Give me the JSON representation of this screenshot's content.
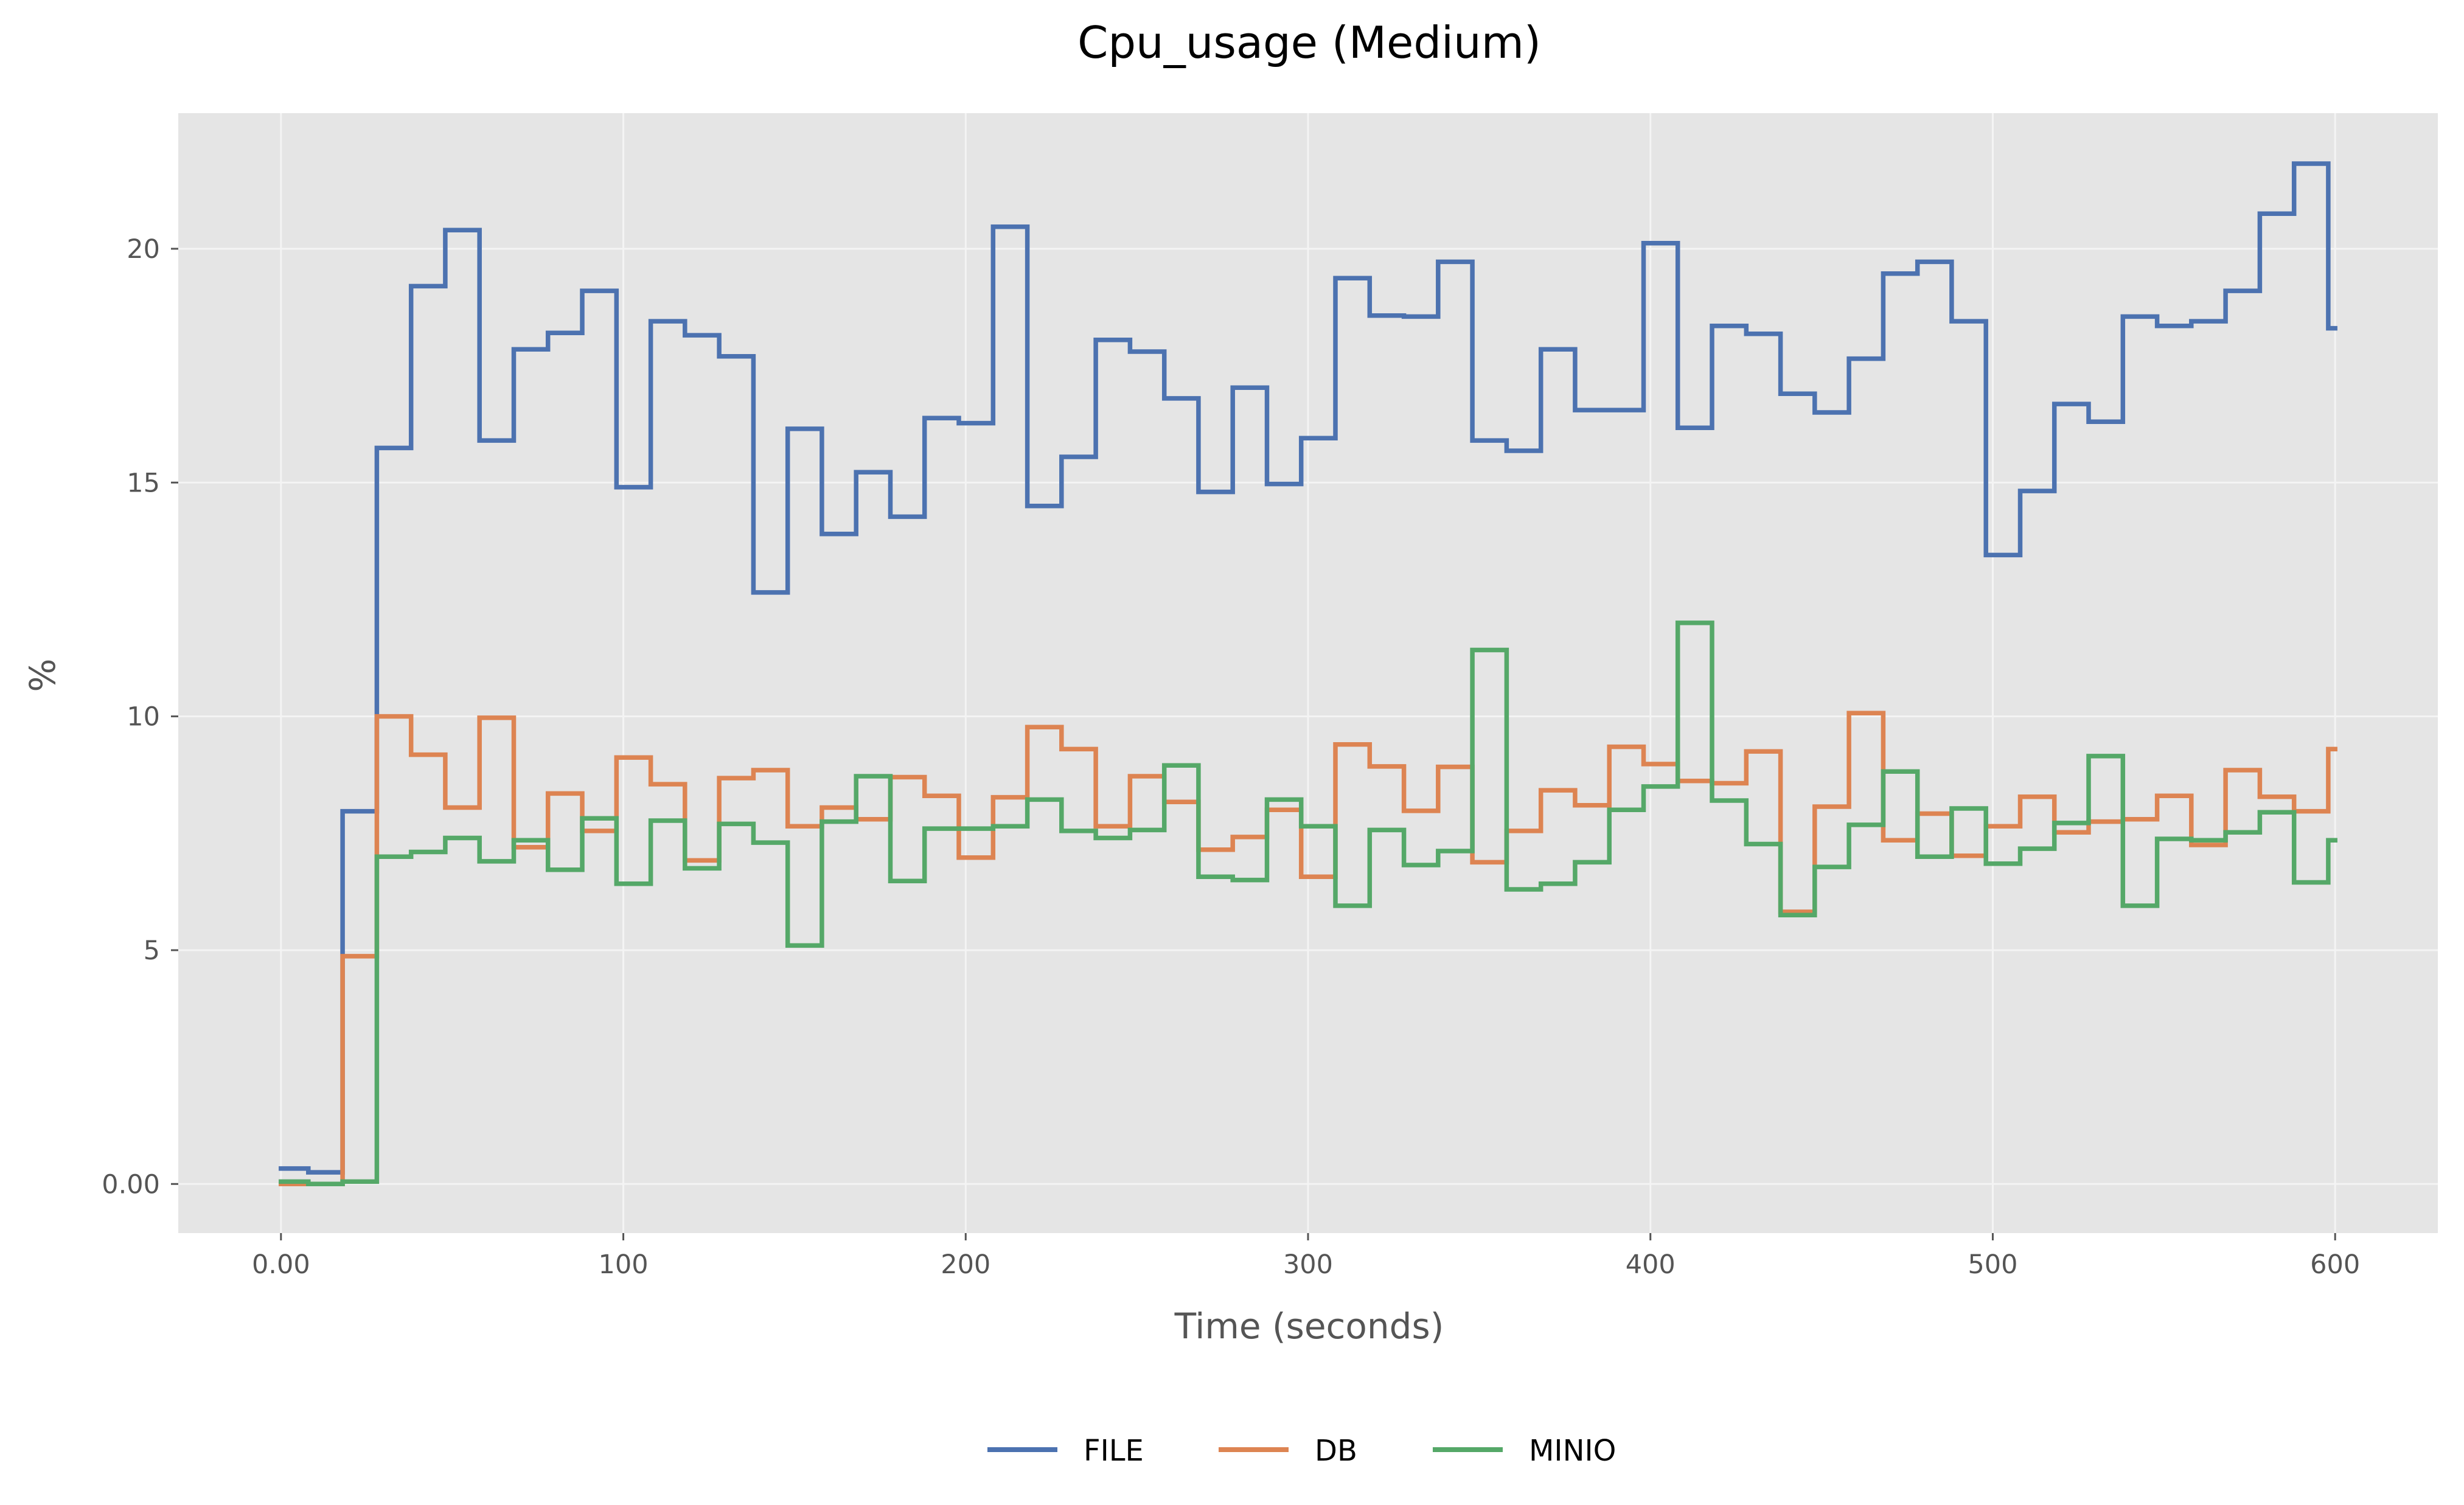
{
  "chart_data": {
    "type": "line",
    "title": "Cpu_usage (Medium)",
    "xlabel": "Time (seconds)",
    "ylabel": "%",
    "xlim": [
      -30,
      630
    ],
    "ylim": [
      -1.05,
      22.9
    ],
    "x_ticks": [
      0,
      100,
      200,
      300,
      400,
      500,
      600
    ],
    "x_tick_labels": [
      "0.00",
      "100",
      "200",
      "300",
      "400",
      "500",
      "600"
    ],
    "y_ticks": [
      0,
      5,
      10,
      15,
      20
    ],
    "y_tick_labels": [
      "0.00",
      "5",
      "10",
      "15",
      "20"
    ],
    "grid": true,
    "legend_position": "bottom-center",
    "step": "post",
    "series": [
      {
        "name": "FILE",
        "color": "#4C72B0",
        "points": [
          [
            0,
            0.33
          ],
          [
            8,
            0.25
          ],
          [
            18,
            7.97
          ],
          [
            28,
            15.74
          ],
          [
            38,
            19.2
          ],
          [
            48,
            20.4
          ],
          [
            58,
            15.9
          ],
          [
            68,
            17.85
          ],
          [
            78,
            18.2
          ],
          [
            88,
            19.1
          ],
          [
            98,
            14.9
          ],
          [
            108,
            18.45
          ],
          [
            118,
            18.15
          ],
          [
            128,
            17.7
          ],
          [
            138,
            12.65
          ],
          [
            148,
            16.15
          ],
          [
            158,
            13.9
          ],
          [
            168,
            15.22
          ],
          [
            178,
            14.27
          ],
          [
            188,
            16.38
          ],
          [
            198,
            16.27
          ],
          [
            208,
            20.47
          ],
          [
            218,
            14.5
          ],
          [
            228,
            15.55
          ],
          [
            238,
            18.05
          ],
          [
            248,
            17.8
          ],
          [
            258,
            16.8
          ],
          [
            268,
            14.8
          ],
          [
            278,
            17.03
          ],
          [
            288,
            14.97
          ],
          [
            298,
            15.95
          ],
          [
            308,
            19.37
          ],
          [
            318,
            18.57
          ],
          [
            328,
            18.55
          ],
          [
            338,
            19.72
          ],
          [
            348,
            15.9
          ],
          [
            358,
            15.68
          ],
          [
            368,
            17.85
          ],
          [
            378,
            16.55
          ],
          [
            388,
            16.55
          ],
          [
            398,
            20.12
          ],
          [
            408,
            16.17
          ],
          [
            418,
            18.35
          ],
          [
            428,
            18.18
          ],
          [
            438,
            16.9
          ],
          [
            448,
            16.5
          ],
          [
            458,
            17.65
          ],
          [
            468,
            19.47
          ],
          [
            478,
            19.72
          ],
          [
            488,
            18.45
          ],
          [
            498,
            13.45
          ],
          [
            508,
            14.82
          ],
          [
            518,
            16.68
          ],
          [
            528,
            16.3
          ],
          [
            538,
            18.55
          ],
          [
            548,
            18.35
          ],
          [
            558,
            18.45
          ],
          [
            568,
            19.1
          ],
          [
            578,
            20.75
          ],
          [
            588,
            21.82
          ],
          [
            598,
            18.3
          ],
          [
            600,
            18.3
          ]
        ]
      },
      {
        "name": "DB",
        "color": "#DD8452",
        "points": [
          [
            0,
            0.0
          ],
          [
            8,
            0.0
          ],
          [
            18,
            4.87
          ],
          [
            28,
            10.0
          ],
          [
            38,
            9.18
          ],
          [
            48,
            8.05
          ],
          [
            58,
            9.97
          ],
          [
            68,
            7.2
          ],
          [
            78,
            8.35
          ],
          [
            88,
            7.55
          ],
          [
            98,
            9.12
          ],
          [
            108,
            8.55
          ],
          [
            118,
            6.92
          ],
          [
            128,
            8.68
          ],
          [
            138,
            8.85
          ],
          [
            148,
            7.65
          ],
          [
            158,
            8.05
          ],
          [
            168,
            7.8
          ],
          [
            178,
            8.7
          ],
          [
            188,
            8.3
          ],
          [
            198,
            6.98
          ],
          [
            208,
            8.27
          ],
          [
            218,
            9.77
          ],
          [
            228,
            9.3
          ],
          [
            238,
            7.65
          ],
          [
            248,
            8.72
          ],
          [
            258,
            8.17
          ],
          [
            268,
            7.15
          ],
          [
            278,
            7.42
          ],
          [
            288,
            8.0
          ],
          [
            298,
            6.57
          ],
          [
            308,
            9.4
          ],
          [
            318,
            8.93
          ],
          [
            328,
            7.98
          ],
          [
            338,
            8.92
          ],
          [
            348,
            6.88
          ],
          [
            358,
            7.55
          ],
          [
            368,
            8.42
          ],
          [
            378,
            8.1
          ],
          [
            388,
            9.35
          ],
          [
            398,
            8.98
          ],
          [
            408,
            8.62
          ],
          [
            418,
            8.57
          ],
          [
            428,
            9.25
          ],
          [
            438,
            5.82
          ],
          [
            448,
            8.07
          ],
          [
            458,
            10.07
          ],
          [
            468,
            7.35
          ],
          [
            478,
            7.92
          ],
          [
            488,
            7.02
          ],
          [
            498,
            7.65
          ],
          [
            508,
            8.28
          ],
          [
            518,
            7.52
          ],
          [
            528,
            7.75
          ],
          [
            538,
            7.8
          ],
          [
            548,
            8.3
          ],
          [
            558,
            7.25
          ],
          [
            568,
            8.85
          ],
          [
            578,
            8.28
          ],
          [
            588,
            7.97
          ],
          [
            598,
            9.3
          ],
          [
            600,
            9.3
          ]
        ]
      },
      {
        "name": "MINIO",
        "color": "#55A868",
        "points": [
          [
            0,
            0.05
          ],
          [
            8,
            0.0
          ],
          [
            18,
            0.05
          ],
          [
            28,
            7.0
          ],
          [
            38,
            7.1
          ],
          [
            48,
            7.4
          ],
          [
            58,
            6.9
          ],
          [
            68,
            7.35
          ],
          [
            78,
            6.72
          ],
          [
            88,
            7.82
          ],
          [
            98,
            6.42
          ],
          [
            108,
            7.77
          ],
          [
            118,
            6.75
          ],
          [
            128,
            7.7
          ],
          [
            138,
            7.3
          ],
          [
            148,
            5.1
          ],
          [
            158,
            7.75
          ],
          [
            168,
            8.72
          ],
          [
            178,
            6.48
          ],
          [
            188,
            7.6
          ],
          [
            198,
            7.6
          ],
          [
            208,
            7.65
          ],
          [
            218,
            8.22
          ],
          [
            228,
            7.55
          ],
          [
            238,
            7.4
          ],
          [
            248,
            7.57
          ],
          [
            258,
            8.95
          ],
          [
            268,
            6.57
          ],
          [
            278,
            6.5
          ],
          [
            288,
            8.22
          ],
          [
            298,
            7.65
          ],
          [
            308,
            5.95
          ],
          [
            318,
            7.57
          ],
          [
            328,
            6.82
          ],
          [
            338,
            7.12
          ],
          [
            348,
            11.42
          ],
          [
            358,
            6.3
          ],
          [
            368,
            6.42
          ],
          [
            378,
            6.88
          ],
          [
            388,
            8.0
          ],
          [
            398,
            8.5
          ],
          [
            408,
            12.0
          ],
          [
            418,
            8.2
          ],
          [
            428,
            7.27
          ],
          [
            438,
            5.75
          ],
          [
            448,
            6.78
          ],
          [
            458,
            7.68
          ],
          [
            468,
            8.82
          ],
          [
            478,
            7.0
          ],
          [
            488,
            8.03
          ],
          [
            498,
            6.85
          ],
          [
            508,
            7.17
          ],
          [
            518,
            7.72
          ],
          [
            528,
            9.15
          ],
          [
            538,
            5.95
          ],
          [
            548,
            7.38
          ],
          [
            558,
            7.35
          ],
          [
            568,
            7.52
          ],
          [
            578,
            7.95
          ],
          [
            588,
            6.45
          ],
          [
            598,
            7.35
          ],
          [
            600,
            7.35
          ]
        ]
      }
    ]
  }
}
